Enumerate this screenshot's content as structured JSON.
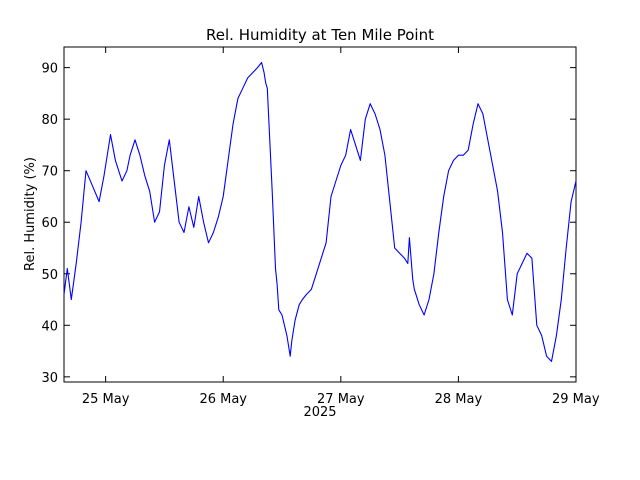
{
  "chart_data": {
    "type": "line",
    "title": "Rel. Humidity at Ten Mile Point",
    "xlabel": "2025",
    "ylabel": "Rel. Humidity (%)",
    "ylim": [
      29,
      94
    ],
    "xlim": [
      "2025-05-24 15:30",
      "2025-05-29 00:00"
    ],
    "yticks": [
      30,
      40,
      50,
      60,
      70,
      80,
      90
    ],
    "xticks": [
      {
        "x": "2025-05-25 00:00",
        "label": "25 May"
      },
      {
        "x": "2025-05-26 00:00",
        "label": "26 May"
      },
      {
        "x": "2025-05-27 00:00",
        "label": "27 May"
      },
      {
        "x": "2025-05-28 00:00",
        "label": "28 May"
      },
      {
        "x": "2025-05-29 00:00",
        "label": "29 May"
      }
    ],
    "grid": false,
    "line_color": "#0000ff",
    "series": [
      {
        "x": [
          "2025-05-24 15:30",
          "2025-05-24 16:10",
          "2025-05-24 17:00",
          "2025-05-24 18:00",
          "2025-05-24 19:00",
          "2025-05-24 20:00",
          "2025-05-24 21:20",
          "2025-05-24 22:40",
          "2025-05-24 23:40",
          "2025-05-25 01:00",
          "2025-05-25 02:00",
          "2025-05-25 03:20",
          "2025-05-25 04:20",
          "2025-05-25 05:00",
          "2025-05-25 05:40",
          "2025-05-25 06:00",
          "2025-05-25 07:00",
          "2025-05-25 08:00",
          "2025-05-25 09:00",
          "2025-05-25 10:00",
          "2025-05-25 11:00",
          "2025-05-25 12:00",
          "2025-05-25 13:00",
          "2025-05-25 14:00",
          "2025-05-25 15:00",
          "2025-05-25 16:00",
          "2025-05-25 17:00",
          "2025-05-25 18:00",
          "2025-05-25 19:00",
          "2025-05-25 20:00",
          "2025-05-25 21:00",
          "2025-05-25 22:00",
          "2025-05-25 23:00",
          "2025-05-26 00:00",
          "2025-05-26 01:00",
          "2025-05-26 02:00",
          "2025-05-26 03:00",
          "2025-05-26 04:00",
          "2025-05-26 05:00",
          "2025-05-26 06:00",
          "2025-05-26 07:00",
          "2025-05-26 07:50",
          "2025-05-26 08:20",
          "2025-05-26 08:40",
          "2025-05-26 09:00",
          "2025-05-26 10:00",
          "2025-05-26 10:40",
          "2025-05-26 11:00",
          "2025-05-26 11:20",
          "2025-05-26 12:00",
          "2025-05-26 13:00",
          "2025-05-26 13:40",
          "2025-05-26 14:00",
          "2025-05-26 14:40",
          "2025-05-26 15:30",
          "2025-05-26 16:10",
          "2025-05-26 17:00",
          "2025-05-26 18:00",
          "2025-05-26 19:00",
          "2025-05-26 20:00",
          "2025-05-26 21:00",
          "2025-05-26 22:00",
          "2025-05-26 23:00",
          "2025-05-27 00:00",
          "2025-05-27 01:00",
          "2025-05-27 02:00",
          "2025-05-27 03:00",
          "2025-05-27 04:00",
          "2025-05-27 05:00",
          "2025-05-27 06:00",
          "2025-05-27 07:00",
          "2025-05-27 08:00",
          "2025-05-27 09:00",
          "2025-05-27 10:00",
          "2025-05-27 11:00",
          "2025-05-27 12:00",
          "2025-05-27 13:00",
          "2025-05-27 13:40",
          "2025-05-27 14:00",
          "2025-05-27 14:40",
          "2025-05-27 15:00",
          "2025-05-27 16:00",
          "2025-05-27 17:00",
          "2025-05-27 18:00",
          "2025-05-27 19:00",
          "2025-05-27 20:00",
          "2025-05-27 21:00",
          "2025-05-27 22:00",
          "2025-05-27 23:00",
          "2025-05-28 00:00",
          "2025-05-28 01:00",
          "2025-05-28 02:00",
          "2025-05-28 03:00",
          "2025-05-28 04:00",
          "2025-05-28 05:00",
          "2025-05-28 06:00",
          "2025-05-28 07:00",
          "2025-05-28 08:00",
          "2025-05-28 09:00",
          "2025-05-28 10:00",
          "2025-05-28 11:00",
          "2025-05-28 12:00",
          "2025-05-28 13:00",
          "2025-05-28 14:00",
          "2025-05-28 15:00",
          "2025-05-28 16:00",
          "2025-05-28 17:00",
          "2025-05-28 18:00",
          "2025-05-28 19:00",
          "2025-05-28 20:00",
          "2025-05-28 21:00",
          "2025-05-28 22:00",
          "2025-05-28 23:00",
          "2025-05-29 00:00"
        ],
        "y": [
          46,
          51,
          45,
          52,
          60,
          70,
          67,
          64,
          69,
          77,
          72,
          68,
          70,
          73,
          75,
          76,
          73,
          69,
          66,
          60,
          62,
          71,
          76,
          68,
          60,
          58,
          63,
          59,
          65,
          60,
          56,
          58,
          61,
          65,
          72,
          79,
          84,
          86,
          88,
          89,
          90,
          91,
          89,
          87,
          86,
          66,
          51,
          48,
          43,
          42,
          38,
          34,
          37,
          41,
          44,
          45,
          46,
          47,
          50,
          53,
          56,
          65,
          68,
          71,
          73,
          78,
          75,
          72,
          80,
          83,
          81,
          78,
          73,
          64,
          55,
          54,
          53,
          52,
          57,
          49,
          47,
          44,
          42,
          45,
          50,
          58,
          65,
          70,
          72,
          73,
          73,
          74,
          79,
          83,
          81,
          76,
          71,
          66,
          58,
          45,
          42,
          50,
          52,
          54,
          53,
          40,
          38,
          34,
          33,
          38,
          45,
          55,
          64,
          68
        ]
      }
    ]
  }
}
